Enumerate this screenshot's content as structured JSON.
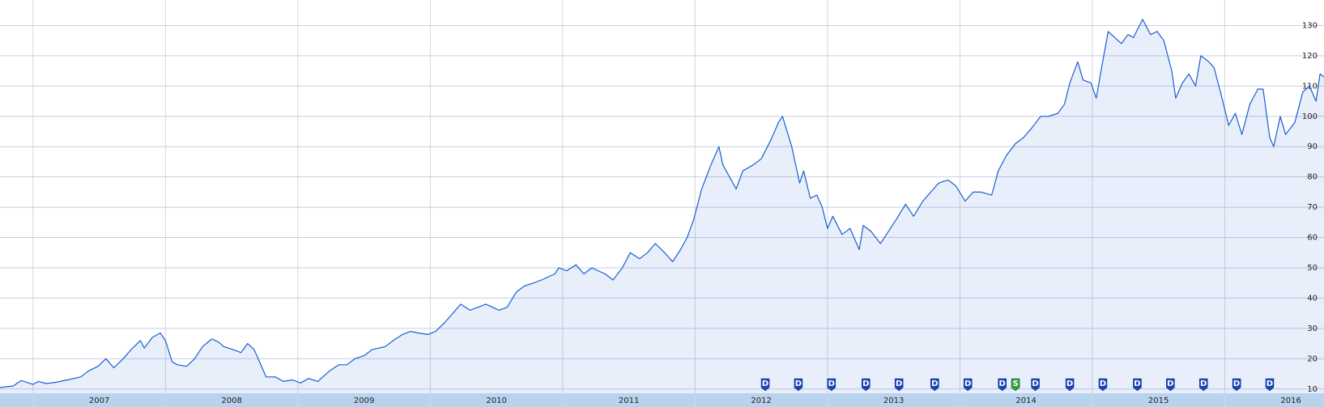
{
  "chart_data": {
    "type": "area",
    "xlim": [
      2006.75,
      2016.75
    ],
    "xticks": [
      2007,
      2008,
      2009,
      2010,
      2011,
      2012,
      2013,
      2014,
      2015,
      2016
    ],
    "ylim": [
      8.6,
      138.4
    ],
    "yticks": [
      10,
      20,
      30,
      40,
      50,
      60,
      70,
      80,
      90,
      100,
      110,
      120,
      130
    ],
    "grid": true,
    "series": [
      {
        "color": "#1a5fd0",
        "x": [
          2006.75,
          2006.85,
          2006.91,
          2007.0,
          2007.04,
          2007.1,
          2007.17,
          2007.26,
          2007.36,
          2007.42,
          2007.49,
          2007.55,
          2007.61,
          2007.68,
          2007.74,
          2007.81,
          2007.84,
          2007.9,
          2007.96,
          2008.0,
          2008.05,
          2008.09,
          2008.16,
          2008.22,
          2008.28,
          2008.35,
          2008.4,
          2008.44,
          2008.51,
          2008.57,
          2008.62,
          2008.67,
          2008.73,
          2008.76,
          2008.83,
          2008.89,
          2008.96,
          2009.02,
          2009.08,
          2009.15,
          2009.24,
          2009.31,
          2009.37,
          2009.43,
          2009.5,
          2009.56,
          2009.66,
          2009.72,
          2009.79,
          2009.85,
          2009.91,
          2009.98,
          2010.04,
          2010.11,
          2010.17,
          2010.23,
          2010.3,
          2010.36,
          2010.42,
          2010.52,
          2010.58,
          2010.65,
          2010.71,
          2010.78,
          2010.84,
          2010.94,
          2010.97,
          2011.03,
          2011.1,
          2011.16,
          2011.22,
          2011.32,
          2011.38,
          2011.45,
          2011.51,
          2011.58,
          2011.64,
          2011.7,
          2011.77,
          2011.83,
          2011.89,
          2011.94,
          2011.99,
          2012.05,
          2012.12,
          2012.18,
          2012.21,
          2012.26,
          2012.31,
          2012.36,
          2012.44,
          2012.5,
          2012.57,
          2012.63,
          2012.66,
          2012.73,
          2012.79,
          2012.82,
          2012.87,
          2012.92,
          2012.96,
          2013.0,
          2013.04,
          2013.11,
          2013.17,
          2013.24,
          2013.27,
          2013.33,
          2013.4,
          2013.46,
          2013.52,
          2013.59,
          2013.65,
          2013.72,
          2013.78,
          2013.84,
          2013.91,
          2013.97,
          2014.04,
          2014.1,
          2014.16,
          2014.24,
          2014.29,
          2014.35,
          2014.42,
          2014.48,
          2014.54,
          2014.61,
          2014.67,
          2014.74,
          2014.79,
          2014.83,
          2014.89,
          2014.93,
          2014.99,
          2015.03,
          2015.07,
          2015.12,
          2015.17,
          2015.22,
          2015.27,
          2015.31,
          2015.38,
          2015.44,
          2015.49,
          2015.54,
          2015.6,
          2015.63,
          2015.68,
          2015.73,
          2015.78,
          2015.82,
          2015.88,
          2015.92,
          2015.98,
          2016.03,
          2016.08,
          2016.13,
          2016.19,
          2016.25,
          2016.29,
          2016.34,
          2016.37,
          2016.42,
          2016.46,
          2016.53,
          2016.59,
          2016.64,
          2016.69,
          2016.72,
          2016.75
        ],
        "values": [
          10.5,
          11,
          12.8,
          11.5,
          12.5,
          11.8,
          12.2,
          13,
          14,
          16,
          17.5,
          20,
          17,
          20,
          23,
          26,
          23.5,
          27,
          28.5,
          26,
          19,
          18,
          17.5,
          20,
          24,
          26.5,
          25.5,
          24,
          23,
          22,
          25,
          23,
          17,
          14,
          14,
          12.5,
          13,
          12,
          13.5,
          12.5,
          16,
          18,
          18,
          20,
          21,
          23,
          24,
          26,
          28,
          29,
          28.5,
          28,
          29,
          32,
          35,
          38,
          36,
          37,
          38,
          36,
          37,
          42,
          44,
          45,
          46,
          48,
          50,
          49,
          51,
          48,
          50,
          48,
          46,
          50,
          55,
          53,
          55,
          58,
          55,
          52,
          56,
          60,
          66,
          76,
          84,
          90,
          84,
          80,
          76,
          82,
          84,
          86,
          92,
          98,
          100,
          90,
          78,
          82,
          73,
          74,
          70,
          63,
          67,
          61,
          63,
          56,
          64,
          62,
          58,
          62,
          66,
          71,
          67,
          72,
          75,
          78,
          79,
          77,
          72,
          75,
          75,
          74,
          82,
          87,
          91,
          93,
          96,
          100,
          100,
          101,
          104,
          111,
          118,
          112,
          111,
          106,
          116,
          128,
          126,
          124,
          127,
          126,
          132,
          127,
          128,
          125,
          115,
          106,
          111,
          114,
          110,
          120,
          118,
          116,
          106,
          97,
          101,
          94,
          104,
          109,
          109,
          93,
          90,
          100,
          94,
          98,
          108,
          110,
          105,
          114,
          113
        ]
      }
    ],
    "events": [
      {
        "x": 2012.53,
        "label": "D"
      },
      {
        "x": 2012.78,
        "label": "D"
      },
      {
        "x": 2013.03,
        "label": "D"
      },
      {
        "x": 2013.29,
        "label": "D"
      },
      {
        "x": 2013.54,
        "label": "D"
      },
      {
        "x": 2013.81,
        "label": "D"
      },
      {
        "x": 2014.06,
        "label": "D"
      },
      {
        "x": 2014.32,
        "label": "D"
      },
      {
        "x": 2014.42,
        "label": "S"
      },
      {
        "x": 2014.57,
        "label": "D"
      },
      {
        "x": 2014.83,
        "label": "D"
      },
      {
        "x": 2015.08,
        "label": "D"
      },
      {
        "x": 2015.34,
        "label": "D"
      },
      {
        "x": 2015.59,
        "label": "D"
      },
      {
        "x": 2015.84,
        "label": "D"
      },
      {
        "x": 2016.09,
        "label": "D"
      },
      {
        "x": 2016.34,
        "label": "D"
      }
    ]
  }
}
